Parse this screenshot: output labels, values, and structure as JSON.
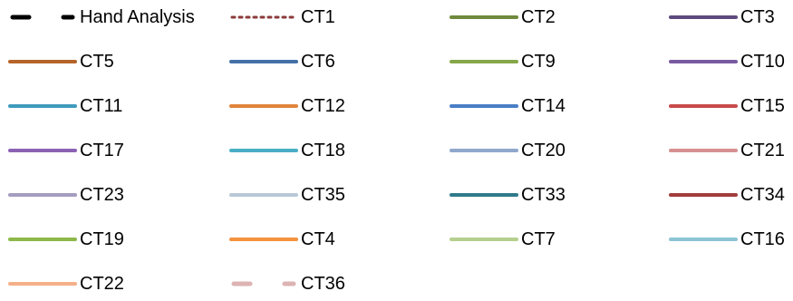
{
  "chart_data": {
    "type": "line",
    "title": "",
    "xlabel": "",
    "ylabel": "",
    "legend": {
      "placement": "full",
      "columns": 4,
      "entries": [
        {
          "name": "Hand Analysis",
          "color": "#000000",
          "style": "dashed"
        },
        {
          "name": "CT1",
          "color": "#8B3A3A",
          "style": "dotted"
        },
        {
          "name": "CT2",
          "color": "#6F8A3C",
          "style": "solid"
        },
        {
          "name": "CT3",
          "color": "#5E4A7E",
          "style": "solid"
        },
        {
          "name": "CT5",
          "color": "#B5652A",
          "style": "solid"
        },
        {
          "name": "CT6",
          "color": "#4470A8",
          "style": "solid"
        },
        {
          "name": "CT9",
          "color": "#86A84A",
          "style": "solid"
        },
        {
          "name": "CT10",
          "color": "#7A5AA0",
          "style": "solid"
        },
        {
          "name": "CT11",
          "color": "#3F9BBE",
          "style": "solid"
        },
        {
          "name": "CT12",
          "color": "#E0843A",
          "style": "solid"
        },
        {
          "name": "CT14",
          "color": "#4A7EC6",
          "style": "solid"
        },
        {
          "name": "CT15",
          "color": "#C94A4A",
          "style": "solid"
        },
        {
          "name": "CT17",
          "color": "#8C62B4",
          "style": "solid"
        },
        {
          "name": "CT18",
          "color": "#4AAFC6",
          "style": "solid"
        },
        {
          "name": "CT20",
          "color": "#8FA8CC",
          "style": "solid"
        },
        {
          "name": "CT21",
          "color": "#D69090",
          "style": "solid"
        },
        {
          "name": "CT23",
          "color": "#A59CC0",
          "style": "solid"
        },
        {
          "name": "CT35",
          "color": "#B8C8D8",
          "style": "solid"
        },
        {
          "name": "CT33",
          "color": "#2F7A8A",
          "style": "solid"
        },
        {
          "name": "CT34",
          "color": "#A23C3C",
          "style": "solid"
        },
        {
          "name": "CT19",
          "color": "#8DB84A",
          "style": "solid"
        },
        {
          "name": "CT4",
          "color": "#F5923E",
          "style": "solid"
        },
        {
          "name": "CT7",
          "color": "#B5CF8E",
          "style": "solid"
        },
        {
          "name": "CT16",
          "color": "#8CC4D4",
          "style": "solid"
        },
        {
          "name": "CT22",
          "color": "#F5B08A",
          "style": "solid"
        },
        {
          "name": "CT36",
          "color": "#DDB3B3",
          "style": "dashed"
        }
      ]
    }
  }
}
